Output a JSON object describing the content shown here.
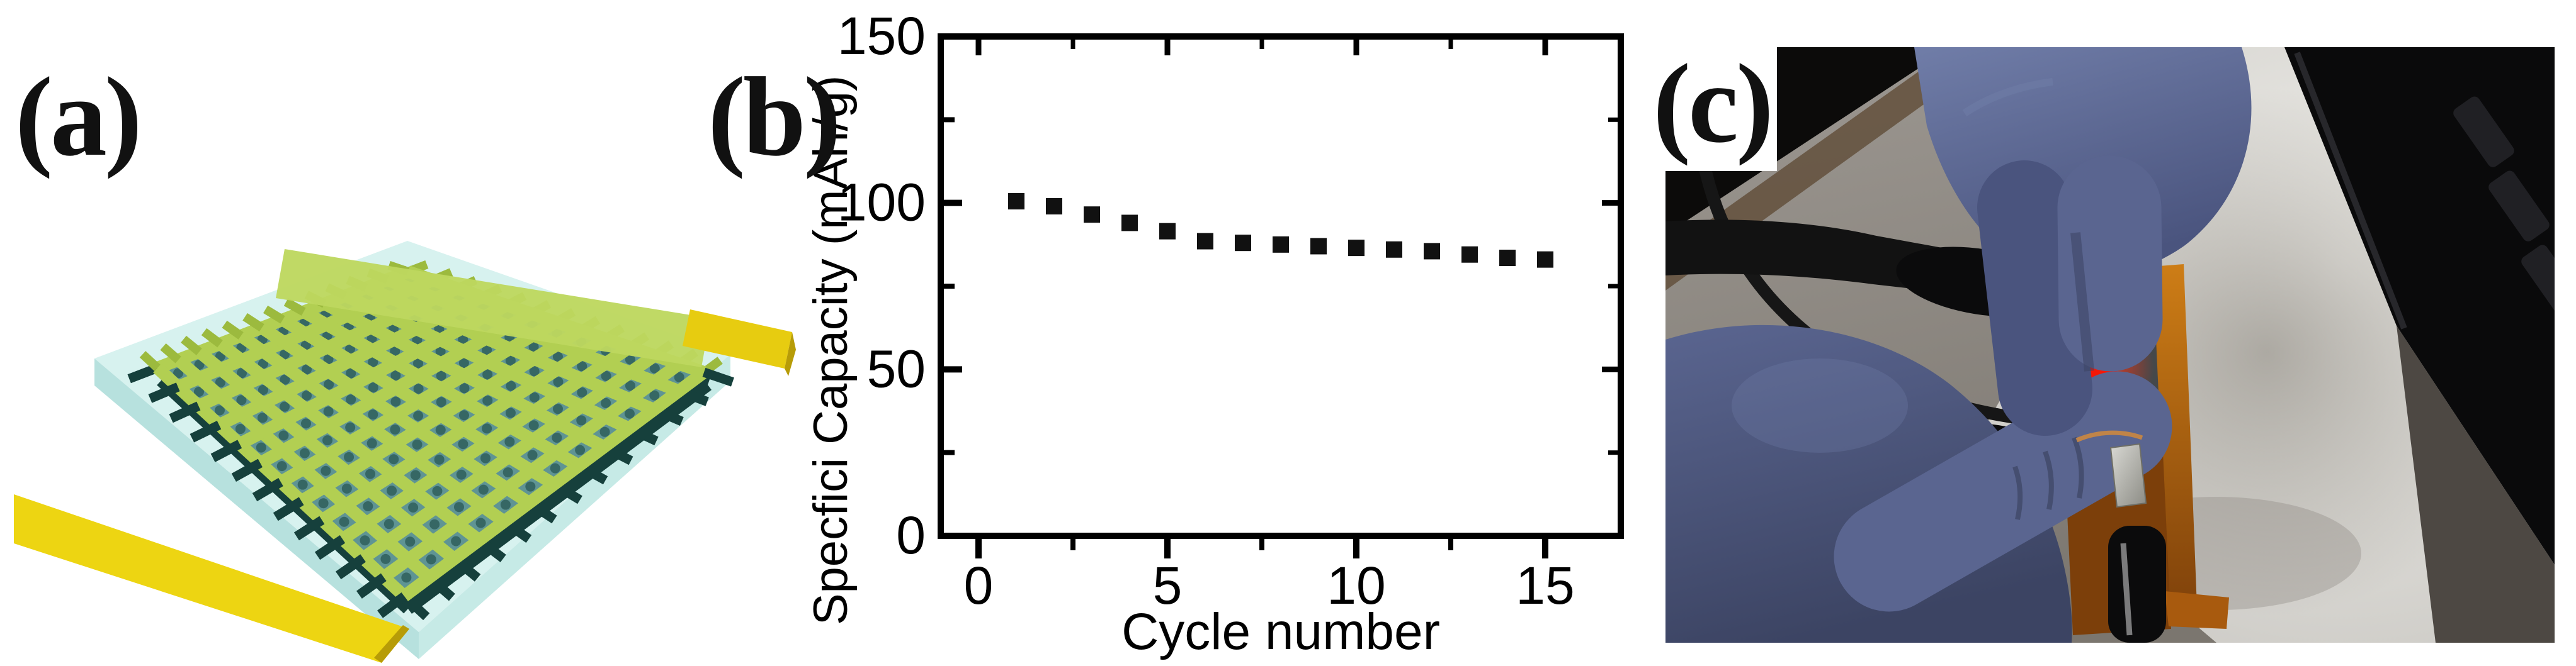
{
  "figure": {
    "background": "#ffffff",
    "panels": {
      "a": {
        "label": "(a)"
      },
      "b": {
        "label": "(b)"
      },
      "c": {
        "label": "(c)"
      }
    }
  },
  "chart_data": {
    "type": "scatter",
    "title": "",
    "xlabel": "Cycle number",
    "ylabel": "Specfici Capacity (mAh/g)",
    "x": [
      1,
      2,
      3,
      4,
      5,
      6,
      7,
      8,
      9,
      10,
      11,
      12,
      13,
      14,
      15
    ],
    "y": [
      100.5,
      99,
      96.5,
      94,
      91.5,
      88.5,
      88,
      87.5,
      87,
      86.5,
      86,
      85.5,
      84.5,
      83.5,
      83
    ],
    "xlim": [
      -1,
      17
    ],
    "ylim": [
      0,
      150
    ],
    "xticks": [
      0,
      5,
      10,
      15
    ],
    "xminorticks": [
      2.5,
      7.5,
      12.5
    ],
    "yticks": [
      0,
      50,
      100,
      150
    ],
    "yminorticks": [
      25,
      75,
      125
    ],
    "grid": false,
    "legend": null,
    "marker": "square",
    "marker_size": 26,
    "marker_color": "#111111",
    "axis_color": "#000000"
  },
  "colors": {
    "schematic": {
      "substrate": "#d7f2ef",
      "substrate_side": "#b7e1de",
      "substrate_side2": "#c6eae6",
      "lattice_green": "#b2cf52",
      "lattice_green_dark": "#9cba3e",
      "well_teal": "#5f9494",
      "well_dark": "#2f5f5c",
      "tooth_dark": "#16403c",
      "gold_bar": "#edd512",
      "gold_bar_dark": "#b79c07",
      "top_bar_green": "#bdd75f",
      "gold_tab": "#e7cc10"
    },
    "photo": {
      "table_light": "#9d9892",
      "table_dark": "#7b766f",
      "black_object": "#0c0b0a",
      "table_brown": "#63503c",
      "paper_light": "#f0efeb",
      "paper_dark": "#c9c7c2",
      "laptop": "#0a0a0b",
      "laptop_key": "#202024",
      "gray_corner": "#4d4843",
      "cable": "#121212",
      "glove_light": "#707da8",
      "glove": "#5a6590",
      "glove_mid": "#4a547e",
      "glove_dark": "#3c4463",
      "kapton_light": "#cd7d16",
      "kapton": "#a85a0e",
      "kapton_dark": "#7c3f0a",
      "white_band": "#d3d6d5",
      "window": "#45484a",
      "led_red": "#f51808",
      "led_core": "#ffb09e",
      "amber": "#e09420",
      "amber_dark": "#a85a08",
      "silver": "#d9d9d4",
      "silver_dark": "#8b8b84",
      "copper": "#a96226",
      "pen": "#0b0b0c"
    }
  }
}
